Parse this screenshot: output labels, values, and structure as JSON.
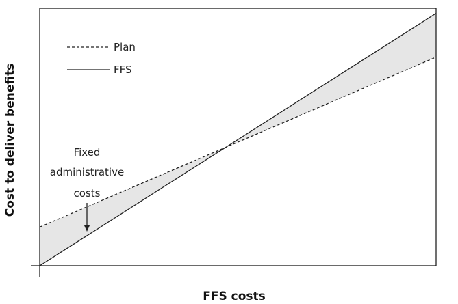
{
  "chart_data": {
    "type": "line",
    "title": "",
    "xlabel": "FFS costs",
    "ylabel": "Cost to deliver benefits",
    "xlim": [
      0,
      100
    ],
    "ylim": [
      0,
      100
    ],
    "grid": false,
    "legend_position": "top-left",
    "shaded_region": "between-series",
    "series": [
      {
        "name": "Plan",
        "style": "dashed",
        "x": [
          0,
          100
        ],
        "y": [
          15,
          81
        ]
      },
      {
        "name": "FFS",
        "style": "solid",
        "x": [
          0,
          100
        ],
        "y": [
          0,
          98
        ]
      }
    ],
    "annotation": {
      "lines": [
        "Fixed",
        "administrative",
        "costs"
      ],
      "points_to_x": 12
    }
  },
  "colors": {
    "line": "#222222",
    "shade": "#e6e6e6",
    "frame": "#111111"
  }
}
